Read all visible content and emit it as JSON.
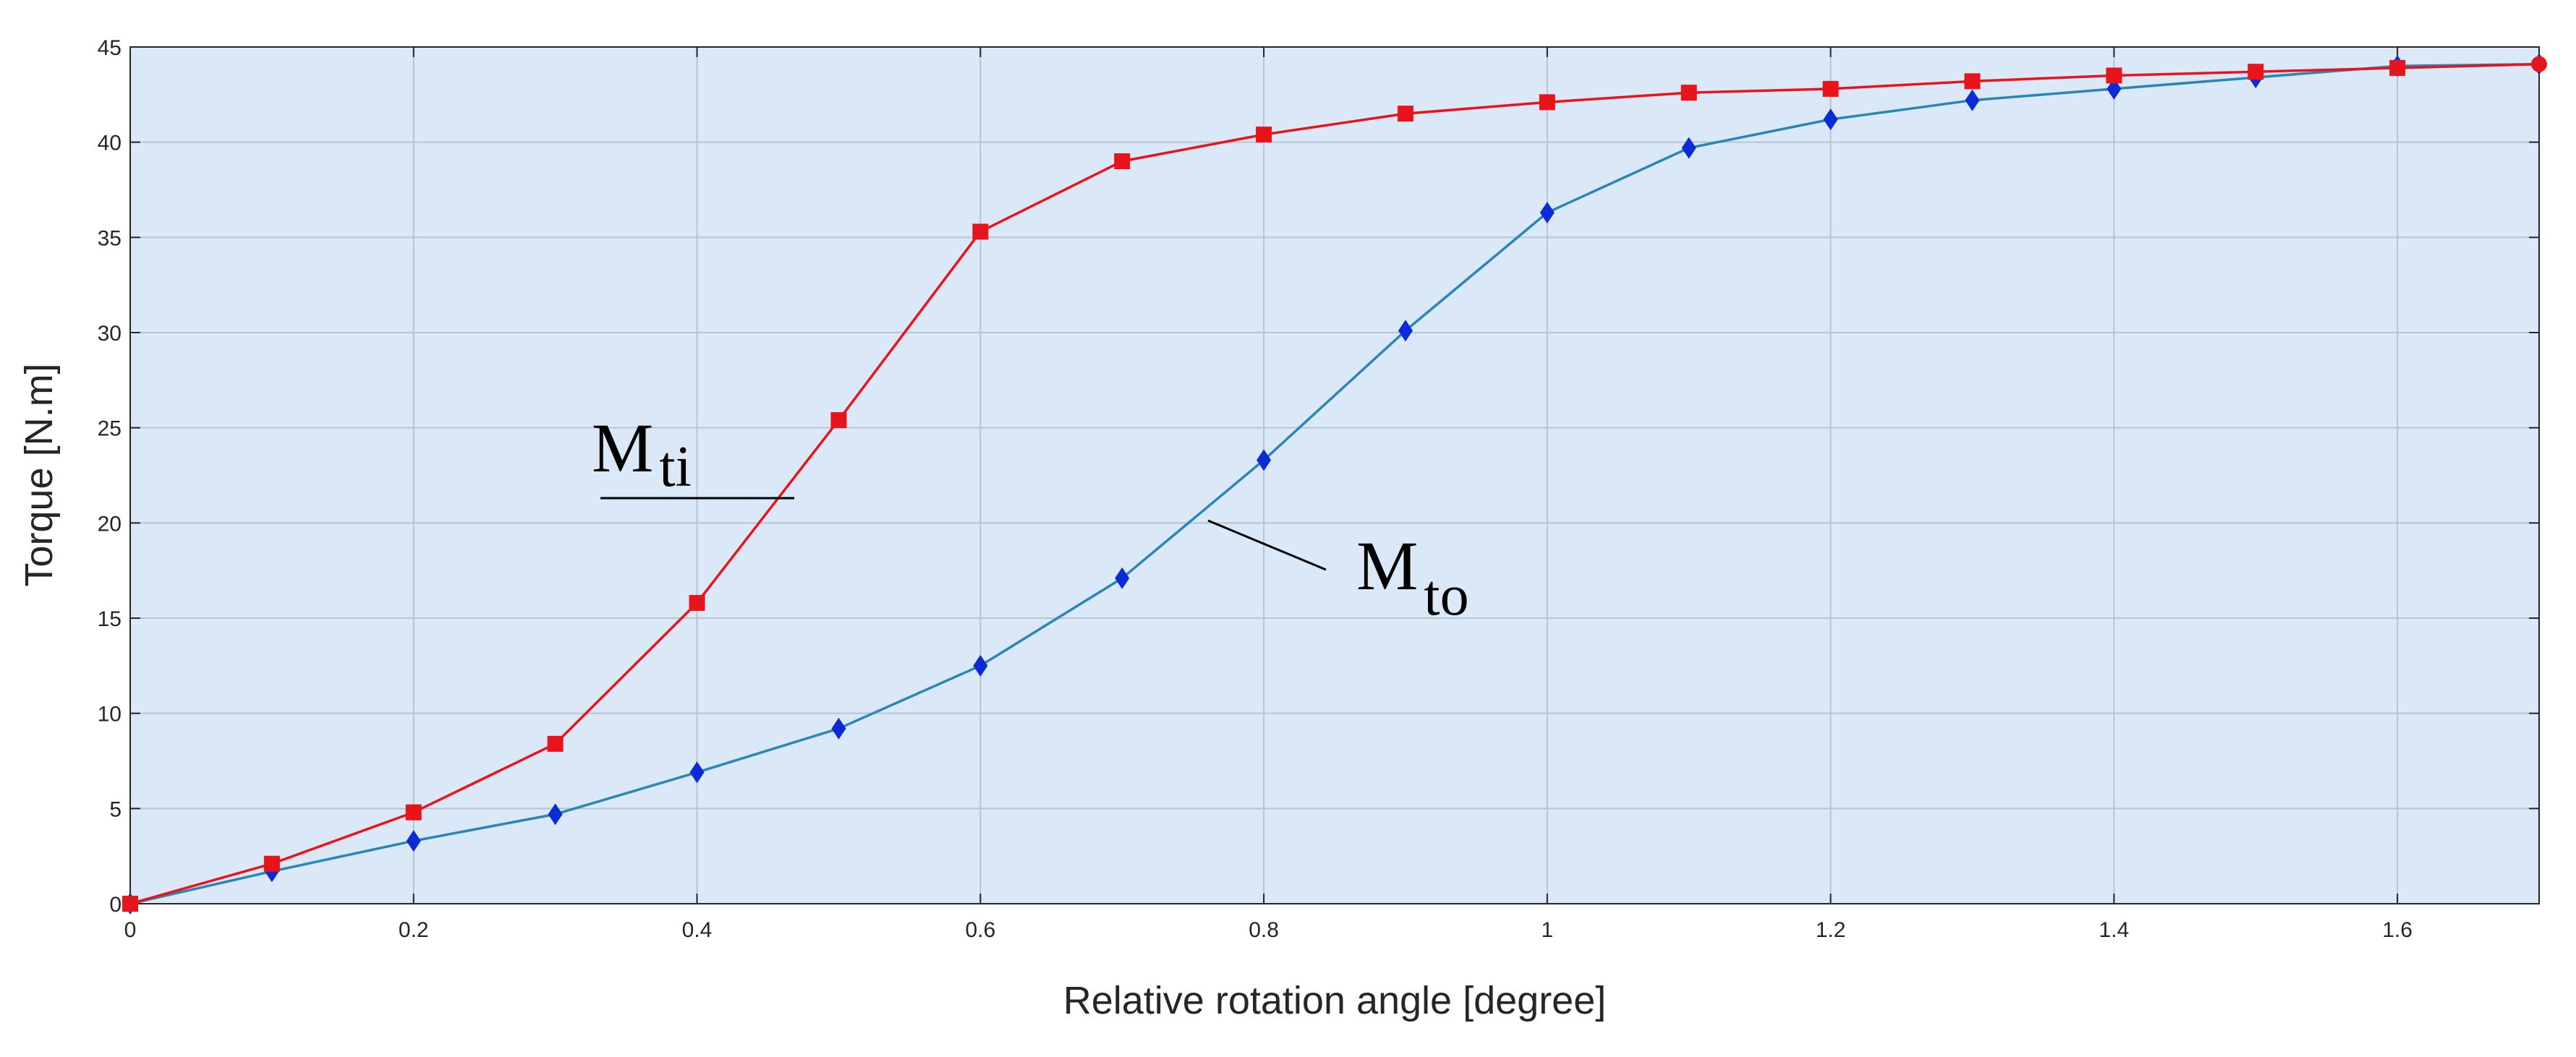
{
  "chart_data": {
    "type": "line",
    "title": "",
    "xlabel": "Relative rotation angle [degree]",
    "ylabel": "Torque [N.m]",
    "xlim": [
      0,
      1.7
    ],
    "ylim": [
      0,
      45
    ],
    "grid": true,
    "xticks": [
      0,
      0.2,
      0.4,
      0.6,
      0.8,
      1,
      1.2,
      1.4,
      1.6
    ],
    "xtick_labels": [
      "0",
      "0.2",
      "0.4",
      "0.6",
      "0.8",
      "1",
      "1.2",
      "1.4",
      "1.6"
    ],
    "yticks": [
      0,
      5,
      10,
      15,
      20,
      25,
      30,
      35,
      40,
      45
    ],
    "ytick_labels": [
      "0",
      "5",
      "10",
      "15",
      "20",
      "25",
      "30",
      "35",
      "40",
      "45"
    ],
    "series": [
      {
        "name": "Mti",
        "label_main": "M",
        "label_sub": "ti",
        "color": "#e8141c",
        "marker": "square",
        "x": [
          0,
          0.1,
          0.2,
          0.3,
          0.4,
          0.5,
          0.6,
          0.7,
          0.8,
          0.9,
          1.0,
          1.1,
          1.2,
          1.3,
          1.4,
          1.5,
          1.6,
          1.7
        ],
        "values": [
          0,
          2.1,
          4.8,
          8.4,
          15.8,
          25.4,
          35.3,
          39.0,
          40.4,
          41.5,
          42.1,
          42.6,
          42.8,
          43.2,
          43.5,
          43.7,
          43.9,
          44.1
        ]
      },
      {
        "name": "Mto",
        "label_main": "M",
        "label_sub": "to",
        "color": "#2a86b8",
        "marker_color": "#0a2bd6",
        "marker": "diamond",
        "x": [
          0,
          0.1,
          0.2,
          0.3,
          0.4,
          0.5,
          0.6,
          0.7,
          0.8,
          0.9,
          1.0,
          1.1,
          1.2,
          1.3,
          1.4,
          1.5,
          1.6,
          1.7
        ],
        "values": [
          0,
          1.7,
          3.3,
          4.7,
          6.9,
          9.2,
          12.5,
          17.1,
          23.3,
          30.1,
          36.3,
          39.7,
          41.2,
          42.2,
          42.8,
          43.4,
          44.0,
          44.1
        ]
      }
    ],
    "annotations": [
      {
        "series": "Mti",
        "main": "M",
        "sub": "ti"
      },
      {
        "series": "Mto",
        "main": "M",
        "sub": "to"
      }
    ]
  },
  "style": {
    "plot_background": "#dbe8f7",
    "grid_color": "#b9c4d1",
    "axis_color": "#262626"
  }
}
